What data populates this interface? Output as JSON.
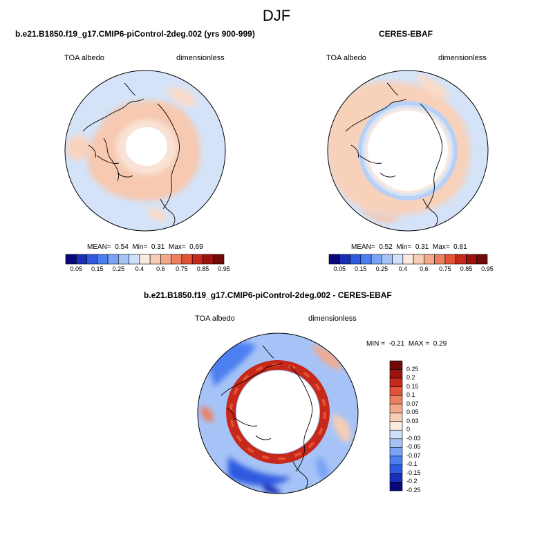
{
  "season": "DJF",
  "panels": [
    {
      "title": "b.e21.B1850.f19_g17.CMIP6-piControl-2deg.002 (yrs 900-999)",
      "left_label": "TOA albedo",
      "right_label": "dimensionless",
      "stats": {
        "mean_label": "MEAN=",
        "mean": "0.54",
        "min_label": "Min=",
        "min": "0.31",
        "max_label": "Max=",
        "max": "0.69"
      }
    },
    {
      "title": "CERES-EBAF",
      "left_label": "TOA albedo",
      "right_label": "dimensionless",
      "stats": {
        "mean_label": "MEAN=",
        "mean": "0.52",
        "min_label": "Min=",
        "min": "0.31",
        "max_label": "Max=",
        "max": "0.81"
      }
    }
  ],
  "colorbar_abs": {
    "colors": [
      "#08087a",
      "#1a2fb8",
      "#2d5ae0",
      "#4d7ff0",
      "#7aa3f5",
      "#a6c3f7",
      "#cfe0fa",
      "#fbeadf",
      "#f8cdb5",
      "#f3a98a",
      "#ec7f5f",
      "#e25236",
      "#c6281a",
      "#9a130d",
      "#6e0a08"
    ],
    "labels": [
      "0.05",
      "0.15",
      "0.25",
      "0.4",
      "0.6",
      "0.75",
      "0.85",
      "0.95"
    ]
  },
  "diff_panel": {
    "title": "b.e21.B1850.f19_g17.CMIP6-piControl-2deg.002 - CERES-EBAF",
    "left_label": "TOA albedo",
    "right_label": "dimensionless",
    "stats": {
      "min_label": "MIN =",
      "min": "-0.21",
      "max_label": "MAX =",
      "max": "0.29"
    }
  },
  "colorbar_diff": {
    "colors": [
      "#6e0a08",
      "#9a130d",
      "#c6281a",
      "#e25236",
      "#ec7f5f",
      "#f3a98a",
      "#f8cdb5",
      "#fbeadf",
      "#cfe0fa",
      "#a6c3f7",
      "#7aa3f5",
      "#4d7ff0",
      "#2d5ae0",
      "#1a2fb8",
      "#08087a"
    ],
    "labels": [
      "0.25",
      "0.2",
      "0.15",
      "0.1",
      "0.07",
      "0.05",
      "0.03",
      "0",
      "-0.03",
      "-0.05",
      "-0.07",
      "-0.1",
      "-0.15",
      "-0.2",
      "-0.25"
    ]
  }
}
